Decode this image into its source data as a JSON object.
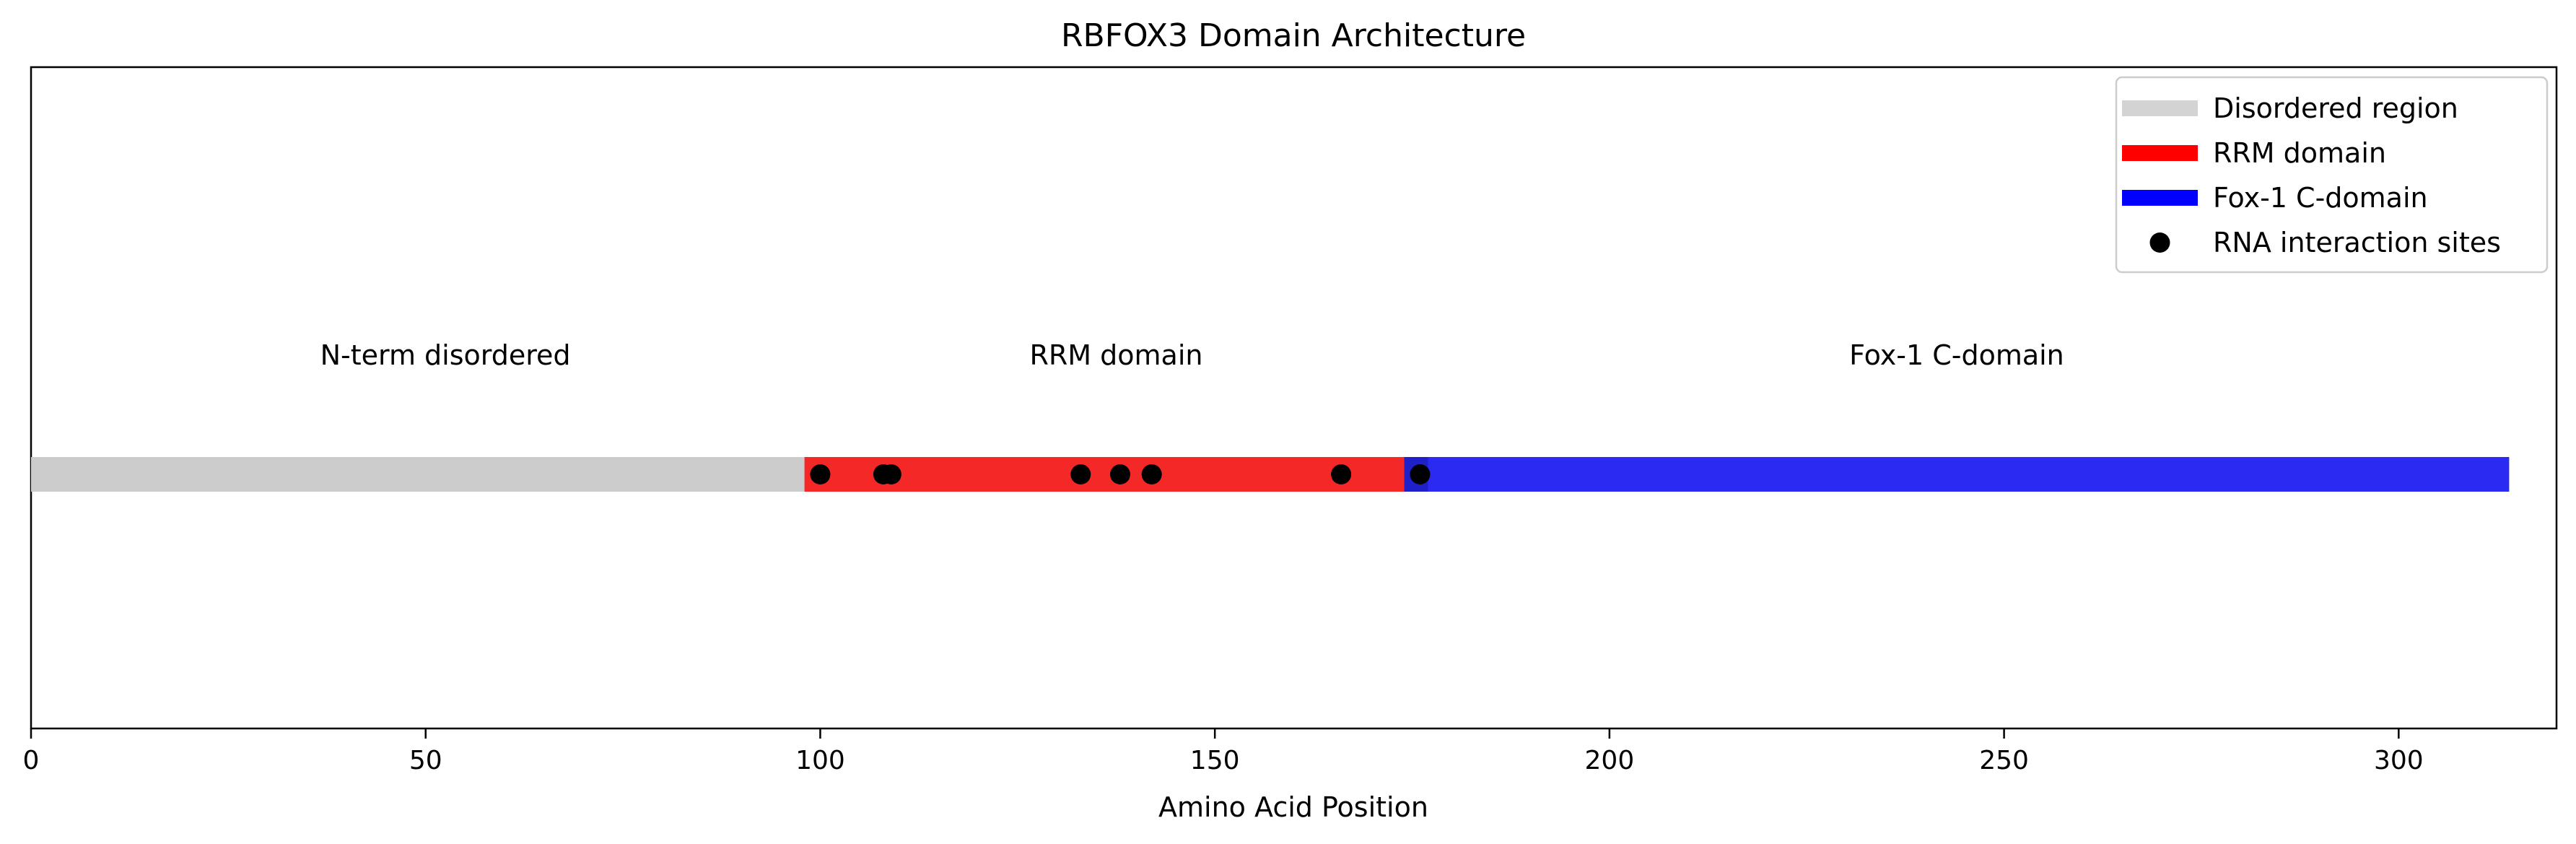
{
  "chart_data": {
    "type": "bar",
    "title": "RBFOX3 Domain Architecture",
    "xlabel": "Amino Acid Position",
    "ylabel": "",
    "xlim": [
      0,
      320
    ],
    "xticks": [
      0,
      50,
      100,
      150,
      200,
      250,
      300
    ],
    "grid": false,
    "legend_position": "top-right",
    "segments": [
      {
        "name": "Disordered region",
        "start": 0,
        "end": 98,
        "color": "#cccccc",
        "legend_color": "#d3d3d3"
      },
      {
        "name": "RRM domain",
        "start": 98,
        "end": 174,
        "color": "#f52828",
        "legend_color": "#ff0000"
      },
      {
        "name": "Fox-1 C-domain",
        "start": 174,
        "end": 314,
        "color": "#2a2af2",
        "legend_color": "#0000ff"
      }
    ],
    "overlap": {
      "start": 174,
      "end": 177,
      "color": "#2020c8"
    },
    "region_labels": [
      {
        "text": "N-term disordered",
        "x": 52.5
      },
      {
        "text": "RRM domain",
        "x": 137.5
      },
      {
        "text": "Fox-1 C-domain",
        "x": 244
      }
    ],
    "points": {
      "name": "RNA interaction sites",
      "color": "#000000",
      "x": [
        100,
        108,
        109,
        133,
        138,
        142,
        166,
        176
      ]
    },
    "legend": [
      {
        "label": "Disordered region",
        "kind": "line",
        "color": "#d3d3d3"
      },
      {
        "label": "RRM domain",
        "kind": "line",
        "color": "#ff0000"
      },
      {
        "label": "Fox-1 C-domain",
        "kind": "line",
        "color": "#0000ff"
      },
      {
        "label": "RNA interaction sites",
        "kind": "dot",
        "color": "#000000"
      }
    ]
  }
}
